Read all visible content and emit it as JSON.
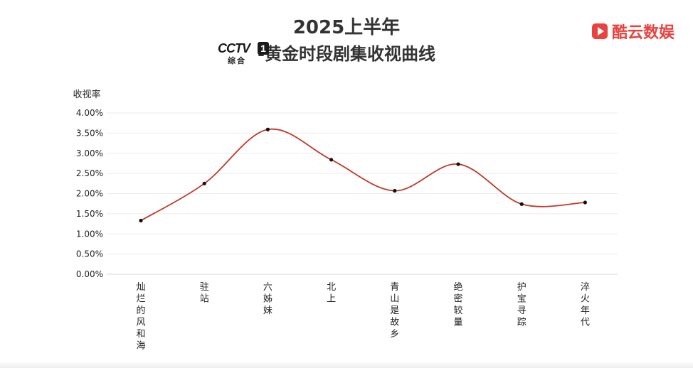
{
  "header": {
    "title_line1": "2025上半年",
    "title_line2": "-黄金时段剧集收视曲线",
    "logo_text": "CCTV",
    "logo_number": "1",
    "logo_sub": "综合",
    "brand_name": "酷云数娱",
    "brand_icon": "play-icon",
    "brand_color": "#e8433f"
  },
  "chart_data": {
    "type": "line",
    "ylabel": "收视率",
    "categories": [
      "灿烂的风和海",
      "驻站",
      "六姊妹",
      "北上",
      "青山是故乡",
      "绝密较量",
      "护宝寻踪",
      "淬火年代"
    ],
    "series": [
      {
        "values": [
          1.33,
          2.25,
          3.59,
          2.84,
          2.07,
          2.73,
          1.74,
          1.78
        ]
      }
    ],
    "ylim": [
      0,
      4
    ],
    "yticks": [
      "0.00%",
      "0.50%",
      "1.00%",
      "1.50%",
      "2.00%",
      "2.50%",
      "3.00%",
      "3.50%",
      "4.00%"
    ],
    "grid": true,
    "line_color": "#c0392b"
  }
}
